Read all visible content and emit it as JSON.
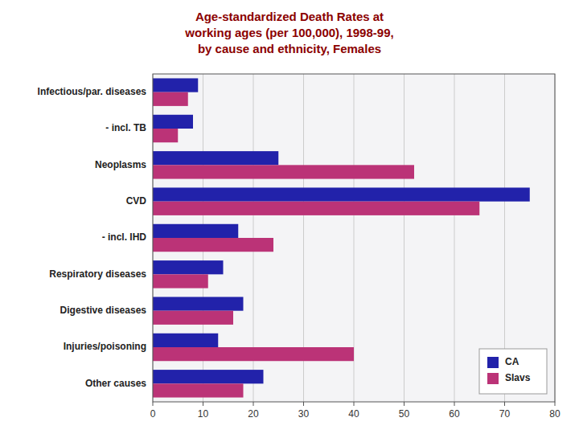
{
  "chart_data": {
    "type": "bar",
    "orientation": "horizontal",
    "title": "Age-standardized Death Rates at\nworking ages (per 100,000), 1998-99,\nby cause and ethnicity, Females",
    "categories": [
      "Infectious/par. diseases",
      "- incl. TB",
      "Neoplasms",
      "CVD",
      "- incl. IHD",
      "Respiratory diseases",
      "Digestive diseases",
      "Injuries/poisoning",
      "Other causes"
    ],
    "series": [
      {
        "name": "CA",
        "color": "#2222AA",
        "values": [
          9,
          8,
          25,
          75,
          17,
          14,
          18,
          13,
          22
        ]
      },
      {
        "name": "Slavs",
        "color": "#BB3377",
        "values": [
          7,
          5,
          52,
          65,
          24,
          11,
          16,
          40,
          18
        ]
      }
    ],
    "xlim": [
      0,
      80
    ],
    "xticks": [
      0,
      10,
      20,
      30,
      40,
      50,
      60,
      70,
      80
    ],
    "grid": true,
    "legend": "lower right"
  }
}
